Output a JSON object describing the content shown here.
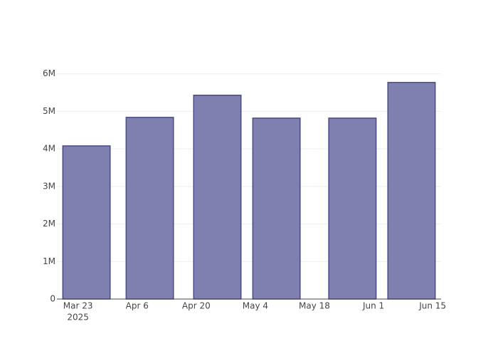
{
  "chart_data": {
    "type": "bar",
    "x": [
      "2025-03-25",
      "2025-04-09",
      "2025-04-25",
      "2025-05-09",
      "2025-05-27",
      "2025-06-10"
    ],
    "values": [
      4080000,
      4840000,
      5430000,
      4820000,
      4820000,
      5770000
    ],
    "color": "#7f7fb0",
    "xlim": [
      "2025-03-18",
      "2025-06-17"
    ],
    "xticks": [
      {
        "value": "2025-03-23",
        "label": "Mar 23"
      },
      {
        "value": "2025-04-06",
        "label": "Apr 6"
      },
      {
        "value": "2025-04-20",
        "label": "Apr 20"
      },
      {
        "value": "2025-05-04",
        "label": "May 4"
      },
      {
        "value": "2025-05-18",
        "label": "May 18"
      },
      {
        "value": "2025-06-01",
        "label": "Jun 1"
      },
      {
        "value": "2025-06-15",
        "label": "Jun 15"
      }
    ],
    "x_year_label": "2025",
    "ylim": [
      0,
      6070000
    ],
    "yticks": [
      0,
      {
        "value": 1000000,
        "label": "1M"
      },
      {
        "value": 2000000,
        "label": "2M"
      },
      {
        "value": 3000000,
        "label": "3M"
      },
      {
        "value": 4000000,
        "label": "4M"
      },
      {
        "value": 5000000,
        "label": "5M"
      },
      {
        "value": 6000000,
        "label": "6M"
      }
    ],
    "grid": true
  }
}
